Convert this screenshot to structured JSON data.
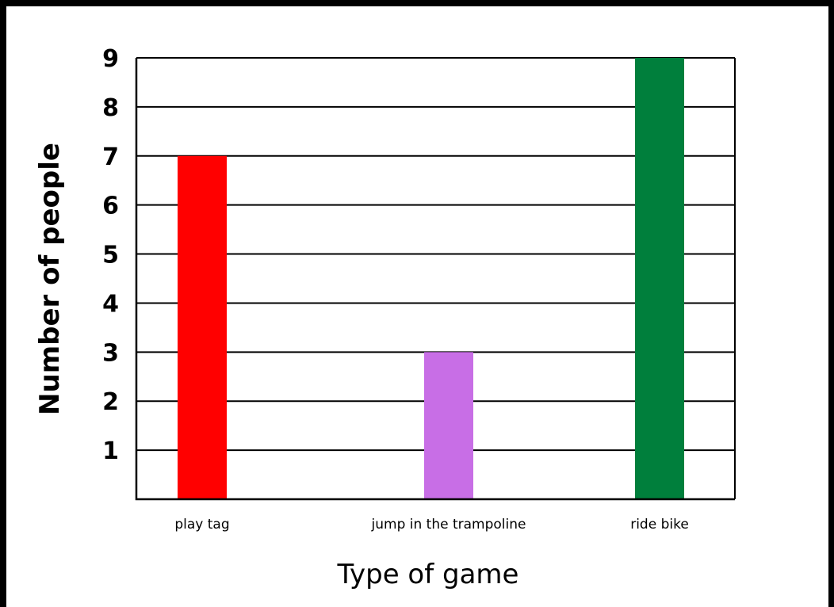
{
  "chart_data": {
    "type": "bar",
    "title": "",
    "categories": [
      "play tag",
      "jump in the trampoline",
      "ride bike"
    ],
    "values": [
      7,
      3,
      9
    ],
    "colors": [
      "#ff0000",
      "#c86ee6",
      "#007f3c"
    ],
    "xlabel": "Type of game",
    "ylabel": "Number of people",
    "ylim": [
      0,
      9
    ],
    "yticks": [
      "1",
      "2",
      "3",
      "4",
      "5",
      "6",
      "7",
      "8",
      "9"
    ],
    "grid": true,
    "legend": "none"
  }
}
